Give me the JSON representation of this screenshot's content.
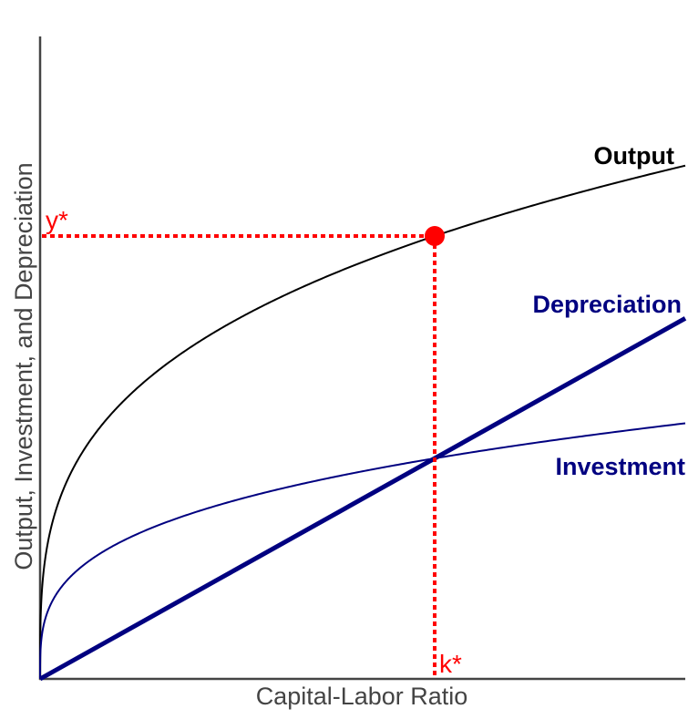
{
  "chart_data": {
    "type": "line",
    "title": "",
    "xlabel": "Capital-Labor Ratio",
    "ylabel": "Output, Investment, and Depreciation",
    "grid": false,
    "legend": "inline labels at right end of curves",
    "x_range": [
      0,
      1.635
    ],
    "y_range": [
      0,
      1.45
    ],
    "series": [
      {
        "name": "Output",
        "formula": "y = k^0.3",
        "color": "#000000",
        "width": 2,
        "label": "Output"
      },
      {
        "name": "Investment",
        "formula": "s*y, s = 0.5",
        "color": "#000080",
        "width": 2,
        "label": "Investment"
      },
      {
        "name": "Depreciation",
        "formula": "d*k, d = 0.5",
        "color": "#000080",
        "width": 5,
        "label": "Depreciation"
      }
    ],
    "annotations": [
      {
        "text": "y*",
        "type": "horizontal-dotted-line",
        "value": 1.0,
        "color": "#ff0000"
      },
      {
        "text": "k*",
        "type": "vertical-dotted-line",
        "value": 1.0,
        "color": "#ff0000"
      },
      {
        "type": "point",
        "x": 1.0,
        "y": 1.0,
        "color": "#ff0000",
        "description": "steady-state output"
      }
    ]
  },
  "labels": {
    "x_axis": "Capital-Labor Ratio",
    "y_axis": "Output, Investment, and Depreciation",
    "output": "Output",
    "depreciation": "Depreciation",
    "investment": "Investment",
    "y_star": "y*",
    "k_star": "k*"
  },
  "colors": {
    "output": "#000000",
    "investment": "#000080",
    "depreciation": "#000080",
    "steady_state": "#ff0000",
    "axis": "#444444"
  }
}
